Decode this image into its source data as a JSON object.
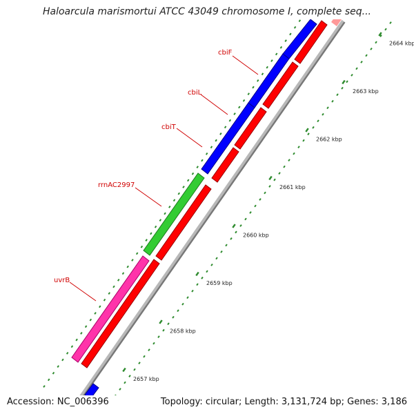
{
  "title": "Haloarcula marismortui ATCC 43049 chromosome I, complete seq...",
  "accession": "Accession: NC_006396",
  "summary": "Topology: circular; Length: 3,131,724 bp; Genes: 3,186",
  "colors": {
    "background": "#ffffff",
    "backbone": "#a9a9a9",
    "forward_cds": "#0000ff",
    "reverse_cds": "#ff0000",
    "rrna": "#33cc33",
    "other_gene": "#ff33aa",
    "label": "#d00000",
    "ticks": "#2e8b2e"
  },
  "genes": [
    {
      "label": "cbiF",
      "type": "forward_cds"
    },
    {
      "label": "cbiL",
      "type": "forward_cds"
    },
    {
      "label": "cbiT",
      "type": "forward_cds"
    },
    {
      "label": "rrnAC2997",
      "type": "rrna"
    },
    {
      "label": "uvrB",
      "type": "other_gene"
    }
  ],
  "scale": {
    "unit": "kbp",
    "labels": [
      "2657 kbp",
      "2658 kbp",
      "2659 kbp",
      "2660 kbp",
      "2661 kbp",
      "2662 kbp",
      "2663 kbp",
      "2664 kbp"
    ]
  }
}
